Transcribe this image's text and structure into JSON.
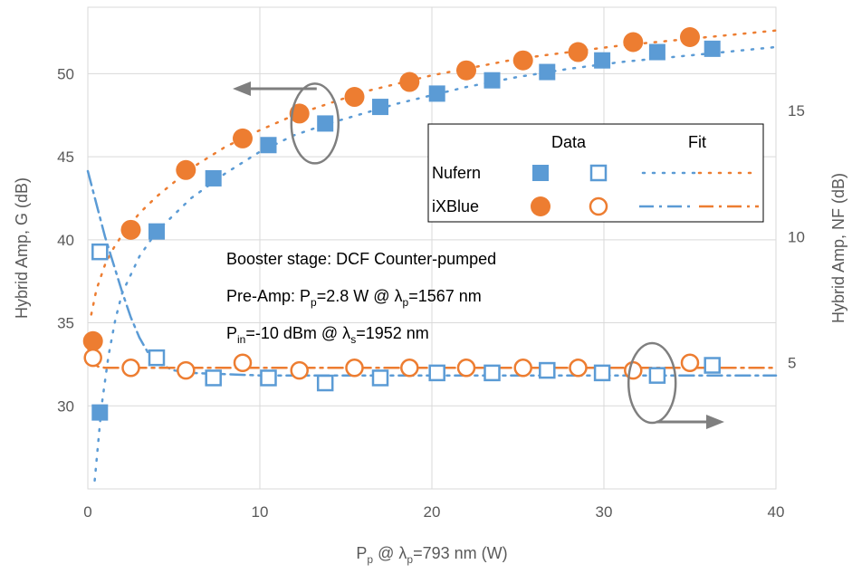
{
  "chart_data": {
    "type": "scatter",
    "x_axis": {
      "label_parts": [
        "P",
        "p",
        " @ λ",
        "p",
        "=793 nm (W)"
      ],
      "range": [
        0,
        40
      ],
      "ticks": [
        0,
        10,
        20,
        30,
        40
      ]
    },
    "y_left_axis": {
      "label": "Hybrid Amp, G (dB)",
      "range": [
        25,
        54
      ],
      "ticks": [
        30,
        35,
        40,
        45,
        50
      ]
    },
    "y_right_axis": {
      "label": "Hybrid Amp, NF (dB)",
      "range": [
        0,
        19.1
      ],
      "ticks": [
        5,
        10,
        15
      ]
    },
    "grid": true,
    "colors": {
      "Nufern": "#5b9bd5",
      "iXBlue": "#ed7d31",
      "annotation": "#7f7f7f"
    },
    "legend": {
      "position": "upper-right-inside",
      "col_data": "Data",
      "col_fit": "Fit",
      "rows": [
        "Nufern",
        "iXBlue"
      ]
    },
    "annotations": [
      {
        "parts": [
          [
            "Booster stage: DCF Counter-pumped",
            "n"
          ]
        ]
      },
      {
        "parts": [
          [
            "Pre-Amp: P",
            "n"
          ],
          [
            "p",
            "sub"
          ],
          [
            "=2.8 W @ λ",
            "n"
          ],
          [
            "p",
            "sub"
          ],
          [
            "=1567 nm",
            "n"
          ]
        ]
      },
      {
        "parts": [
          [
            "P",
            "n"
          ],
          [
            "in",
            "sub"
          ],
          [
            "=-10 dBm @ λ",
            "n"
          ],
          [
            "s",
            "sub"
          ],
          [
            "=1952 nm",
            "n"
          ]
        ]
      }
    ],
    "axis_indicators": [
      {
        "points_to": "left",
        "near": [
          13.2,
          47.0
        ]
      },
      {
        "points_to": "right",
        "near": [
          32.8,
          4.2
        ]
      }
    ],
    "series": [
      {
        "name": "Nufern",
        "kind": "data",
        "metric": "gain",
        "axis": "left",
        "marker": "filled-square",
        "x": [
          0.7,
          4.0,
          7.3,
          10.5,
          13.8,
          17.0,
          20.3,
          23.5,
          26.7,
          29.9,
          33.1,
          36.3
        ],
        "y": [
          29.6,
          40.5,
          43.7,
          45.7,
          47.0,
          48.0,
          48.8,
          49.6,
          50.1,
          50.8,
          51.3,
          51.5
        ]
      },
      {
        "name": "iXBlue",
        "kind": "data",
        "metric": "gain",
        "axis": "left",
        "marker": "filled-circle",
        "x": [
          0.3,
          2.5,
          5.7,
          9.0,
          12.3,
          15.5,
          18.7,
          22.0,
          25.3,
          28.5,
          31.7,
          35.0
        ],
        "y": [
          33.9,
          40.6,
          44.2,
          46.1,
          47.6,
          48.6,
          49.5,
          50.2,
          50.8,
          51.3,
          51.9,
          52.2
        ]
      },
      {
        "name": "Nufern",
        "kind": "data",
        "metric": "nf",
        "axis": "right",
        "marker": "open-square",
        "x": [
          0.7,
          4.0,
          7.3,
          10.5,
          13.8,
          17.0,
          20.3,
          23.5,
          26.7,
          29.9,
          33.1,
          36.3
        ],
        "y": [
          9.4,
          5.2,
          4.4,
          4.4,
          4.2,
          4.4,
          4.6,
          4.6,
          4.7,
          4.6,
          4.5,
          4.9
        ]
      },
      {
        "name": "iXBlue",
        "kind": "data",
        "metric": "nf",
        "axis": "right",
        "marker": "open-circle",
        "x": [
          0.3,
          2.5,
          5.7,
          9.0,
          12.3,
          15.5,
          18.7,
          22.0,
          25.3,
          28.5,
          31.7,
          35.0
        ],
        "y": [
          5.2,
          4.8,
          4.7,
          5.0,
          4.7,
          4.8,
          4.8,
          4.8,
          4.8,
          4.8,
          4.7,
          5.0
        ]
      },
      {
        "name": "Nufern",
        "kind": "fit",
        "metric": "gain",
        "axis": "left",
        "line": "dotted",
        "x": [
          0.4,
          0.8,
          1.2,
          1.6,
          2.0,
          3.0,
          4.0,
          6.0,
          8.0,
          10.0,
          12.0,
          14.0,
          16.0,
          18.0,
          20.0,
          22.0,
          25.0,
          28.0,
          31.0,
          34.0,
          37.0,
          40.0
        ],
        "y": [
          25.5,
          30.0,
          33.0,
          35.2,
          36.8,
          39.0,
          40.5,
          42.5,
          44.0,
          45.3,
          46.3,
          47.0,
          47.6,
          48.2,
          48.7,
          49.2,
          49.8,
          50.3,
          50.7,
          51.0,
          51.3,
          51.6
        ]
      },
      {
        "name": "iXBlue",
        "kind": "fit",
        "metric": "gain",
        "axis": "left",
        "line": "dotted",
        "x": [
          0.2,
          0.5,
          1.0,
          1.5,
          2.0,
          3.0,
          4.0,
          6.0,
          8.0,
          10.0,
          12.0,
          14.0,
          16.0,
          18.0,
          20.0,
          22.0,
          25.0,
          28.0,
          31.0,
          34.0,
          37.0,
          40.0
        ],
        "y": [
          35.5,
          37.0,
          38.5,
          39.5,
          40.3,
          41.6,
          42.6,
          44.3,
          45.6,
          46.6,
          47.5,
          48.2,
          48.9,
          49.4,
          49.9,
          50.3,
          50.9,
          51.3,
          51.7,
          52.0,
          52.3,
          52.6
        ]
      },
      {
        "name": "Nufern",
        "kind": "fit",
        "metric": "nf",
        "axis": "right",
        "line": "dash-dot",
        "x": [
          0,
          0.5,
          1.0,
          1.5,
          2.0,
          2.5,
          3.0,
          3.5,
          4.0,
          5.0,
          6.0,
          8.0,
          10.0,
          15.0,
          20.0,
          25.0,
          30.0,
          35.0,
          40.0
        ],
        "y": [
          12.6,
          11.3,
          10.0,
          8.9,
          7.8,
          6.8,
          6.0,
          5.4,
          5.0,
          4.7,
          4.6,
          4.55,
          4.5,
          4.5,
          4.5,
          4.5,
          4.5,
          4.5,
          4.5
        ]
      },
      {
        "name": "iXBlue",
        "kind": "fit",
        "metric": "nf",
        "axis": "right",
        "line": "dash-dot",
        "x": [
          0,
          0.3,
          0.6,
          1.0,
          1.5,
          2.0,
          3.0,
          5.0,
          10.0,
          20.0,
          30.0,
          40.0
        ],
        "y": [
          5.6,
          5.0,
          4.85,
          4.8,
          4.8,
          4.8,
          4.8,
          4.8,
          4.8,
          4.8,
          4.8,
          4.8
        ]
      }
    ]
  }
}
